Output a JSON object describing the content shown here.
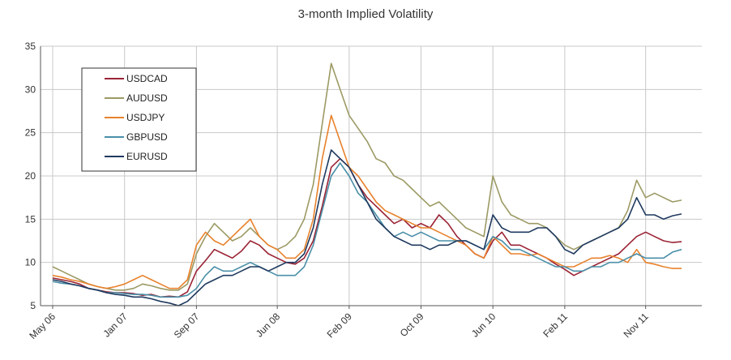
{
  "chart_data": {
    "type": "line",
    "title": "3-month Implied Volatility",
    "xlabel": "",
    "ylabel": "",
    "ylim": [
      5,
      35
    ],
    "yticks": [
      5,
      10,
      15,
      20,
      25,
      30,
      35
    ],
    "grid": true,
    "legend_position": "top-left",
    "x_tick_labels": [
      "May 06",
      "Jan 07",
      "Sep 07",
      "Jun 08",
      "Feb 09",
      "Oct 09",
      "Jun 10",
      "Feb 11",
      "Nov 11"
    ],
    "x_tick_index": [
      0,
      8,
      16,
      25,
      33,
      41,
      49,
      57,
      66
    ],
    "x_max_index": 70,
    "series": [
      {
        "name": "USDCAD",
        "color": "#9b2335",
        "values": [
          8.2,
          8.0,
          7.8,
          7.5,
          7.0,
          6.8,
          6.6,
          6.5,
          6.5,
          6.4,
          6.2,
          6.3,
          6.0,
          6.1,
          6.0,
          6.6,
          9.0,
          10.2,
          11.5,
          11.0,
          10.5,
          11.3,
          12.5,
          12.0,
          11.0,
          10.5,
          10.0,
          9.8,
          10.5,
          12.5,
          16.5,
          21.0,
          22.0,
          21.0,
          19.0,
          17.5,
          16.5,
          15.5,
          14.5,
          15.0,
          14.0,
          14.5,
          14.0,
          15.5,
          14.5,
          13.0,
          12.0,
          11.0,
          10.5,
          12.5,
          13.5,
          12.0,
          12.0,
          11.5,
          11.0,
          10.5,
          9.8,
          9.2,
          8.5,
          9.0,
          9.5,
          10.0,
          10.5,
          11.0,
          12.0,
          13.0,
          13.5,
          13.0,
          12.5,
          12.3,
          12.4
        ]
      },
      {
        "name": "AUDUSD",
        "color": "#9c9a64",
        "values": [
          9.5,
          9.0,
          8.5,
          8.0,
          7.5,
          7.2,
          7.0,
          6.8,
          6.8,
          7.0,
          7.5,
          7.3,
          7.0,
          6.8,
          6.8,
          7.5,
          11.0,
          13.0,
          14.5,
          13.5,
          12.5,
          13.0,
          14.0,
          13.0,
          12.0,
          11.5,
          12.0,
          13.0,
          15.0,
          19.0,
          26.0,
          33.0,
          30.0,
          27.0,
          25.5,
          24.0,
          22.0,
          21.5,
          20.0,
          19.5,
          18.5,
          17.5,
          16.5,
          17.0,
          16.0,
          15.0,
          14.0,
          13.5,
          13.0,
          20.0,
          17.0,
          15.5,
          15.0,
          14.5,
          14.5,
          14.0,
          13.0,
          12.0,
          11.5,
          12.0,
          12.5,
          13.0,
          13.5,
          14.0,
          16.0,
          19.5,
          17.5,
          18.0,
          17.5,
          17.0,
          17.2
        ]
      },
      {
        "name": "USDJPY",
        "color": "#e8822c",
        "values": [
          8.5,
          8.3,
          8.0,
          7.8,
          7.5,
          7.2,
          7.0,
          7.2,
          7.5,
          8.0,
          8.5,
          8.0,
          7.5,
          7.0,
          7.0,
          8.0,
          12.0,
          13.5,
          12.5,
          12.0,
          13.0,
          14.0,
          15.0,
          13.0,
          12.0,
          11.5,
          10.5,
          10.5,
          11.5,
          15.0,
          22.0,
          27.0,
          24.0,
          21.0,
          20.0,
          18.5,
          17.0,
          16.0,
          15.5,
          15.0,
          14.5,
          14.0,
          14.0,
          13.5,
          13.0,
          12.5,
          12.0,
          11.0,
          10.5,
          13.0,
          12.0,
          11.0,
          11.0,
          10.8,
          11.0,
          10.5,
          10.0,
          9.5,
          9.5,
          10.0,
          10.5,
          10.5,
          10.8,
          10.5,
          10.0,
          11.5,
          10.0,
          9.8,
          9.5,
          9.3,
          9.3
        ]
      },
      {
        "name": "GBPUSD",
        "color": "#4a8fa8",
        "values": [
          7.8,
          7.6,
          7.5,
          7.3,
          7.0,
          6.8,
          6.5,
          6.5,
          6.4,
          6.3,
          6.3,
          6.2,
          6.0,
          6.0,
          6.0,
          6.2,
          7.0,
          8.5,
          9.5,
          9.0,
          9.0,
          9.5,
          10.0,
          9.5,
          9.0,
          8.5,
          8.5,
          8.5,
          9.5,
          12.0,
          16.0,
          20.0,
          21.5,
          20.0,
          18.0,
          17.0,
          15.5,
          14.0,
          13.0,
          13.5,
          13.0,
          13.5,
          13.0,
          12.5,
          12.5,
          12.5,
          12.5,
          12.0,
          11.5,
          13.0,
          12.5,
          11.5,
          11.5,
          11.0,
          10.5,
          10.0,
          9.5,
          9.5,
          9.0,
          9.0,
          9.5,
          9.5,
          10.0,
          10.0,
          10.5,
          11.0,
          10.5,
          10.5,
          10.5,
          11.2,
          11.5
        ]
      },
      {
        "name": "EURUSD",
        "color": "#1f3a5f",
        "values": [
          8.0,
          7.8,
          7.5,
          7.3,
          7.0,
          6.8,
          6.5,
          6.3,
          6.2,
          6.0,
          6.0,
          5.8,
          5.5,
          5.3,
          5.0,
          5.5,
          6.5,
          7.5,
          8.0,
          8.5,
          8.5,
          9.0,
          9.5,
          9.5,
          9.0,
          9.5,
          10.0,
          10.0,
          11.0,
          14.0,
          19.0,
          23.0,
          22.0,
          21.0,
          19.0,
          17.0,
          15.0,
          14.0,
          13.0,
          12.5,
          12.0,
          12.0,
          11.5,
          12.0,
          12.0,
          12.5,
          12.5,
          12.0,
          11.5,
          15.5,
          14.0,
          13.5,
          13.5,
          13.5,
          14.0,
          14.0,
          13.0,
          11.5,
          11.0,
          12.0,
          12.5,
          13.0,
          13.5,
          14.0,
          15.0,
          17.5,
          15.5,
          15.5,
          15.0,
          15.4,
          15.6
        ]
      }
    ]
  }
}
